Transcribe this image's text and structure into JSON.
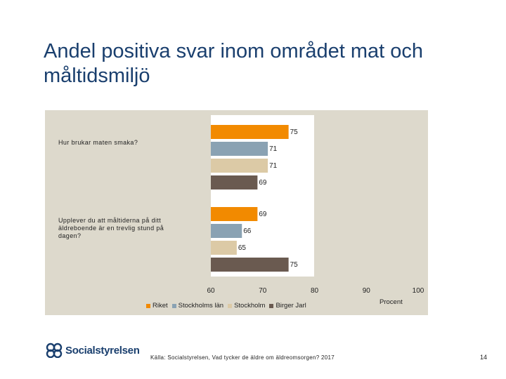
{
  "slide": {
    "title": "Andel positiva svar inom området mat och måltidsmiljö",
    "source": "Källa: Socialstyrelsen, Vad tycker de äldre om äldreomsorgen? 2017",
    "page_number": "14",
    "logo_text": "Socialstyrelsen"
  },
  "colors": {
    "Riket": "#f28a00",
    "Stockholms län": "#8aa2b3",
    "Stockholm": "#dccaa6",
    "Birger Jarl": "#6a5a50",
    "panel": "#ddd9cc",
    "title": "#1a3f6e"
  },
  "chart_data": {
    "type": "bar",
    "orientation": "horizontal",
    "title": "",
    "xlabel": "Procent",
    "ylabel": "",
    "xlim": [
      60,
      100
    ],
    "xticks": [
      "60",
      "70",
      "80",
      "90",
      "100"
    ],
    "categories": [
      "Hur brukar maten smaka?",
      "Upplever du att måltiderna på ditt äldreboende är en trevlig stund på dagen?"
    ],
    "series": [
      {
        "name": "Riket",
        "values": [
          75,
          69
        ]
      },
      {
        "name": "Stockholms län",
        "values": [
          71,
          66
        ]
      },
      {
        "name": "Stockholm",
        "values": [
          71,
          65
        ]
      },
      {
        "name": "Birger Jarl",
        "values": [
          69,
          75
        ]
      }
    ],
    "legend_position": "bottom",
    "grid": false
  }
}
